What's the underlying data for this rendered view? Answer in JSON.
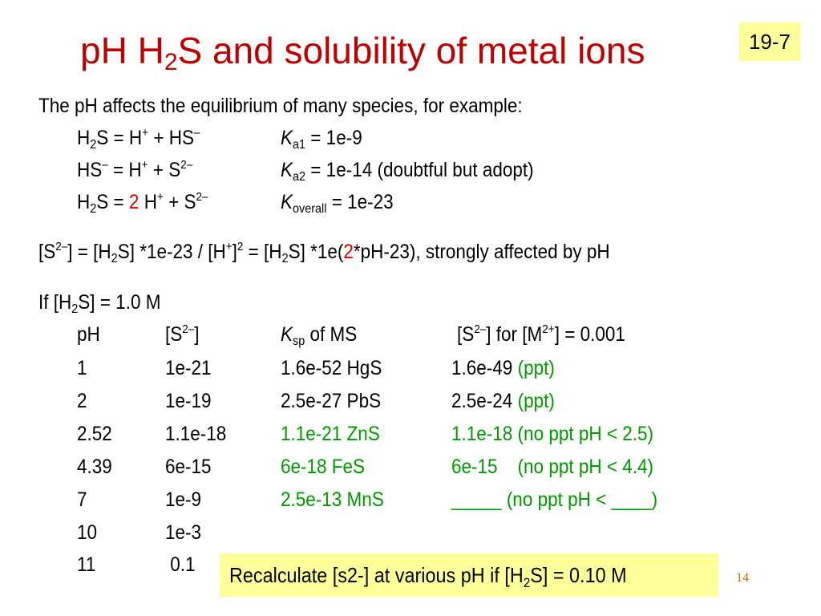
{
  "title": {
    "pre": "pH H",
    "sub": "2",
    "post": "S and solubility of metal ions"
  },
  "badge": "19-7",
  "intro": "The pH affects the equilibrium of many species, for example:",
  "eq1": {
    "a": "H",
    "b": "2",
    "c": "S = H",
    "d": "+",
    "e": " + HS",
    "f": "–",
    "k": "K",
    "ksub": "a1",
    "kval": " = 1e-9"
  },
  "eq2": {
    "a": "HS",
    "b": "–",
    "c": " = H",
    "d": "+",
    "e": " + S",
    "f": "2–",
    "k": "K",
    "ksub": "a2",
    "kval": " = 1e-14 (doubtful but adopt)"
  },
  "eq3": {
    "a": "H",
    "b": "2",
    "c": "S = ",
    "red": "2",
    "d": " H",
    "e": "+",
    "f": " + S",
    "g": "2–",
    "k": "K",
    "ksub": "overall",
    "kval": " = 1e-23"
  },
  "relation": {
    "p1": "[S",
    "p2": "2–",
    "p3": "] = [H",
    "p4": "2",
    "p5": "S] *1e-23 / [H",
    "p6": "+",
    "p7": "]",
    "p8": "2",
    "p9": " = [H",
    "p10": "2",
    "p11": "S] *1e(",
    "red": "2",
    "p12": "*pH-23), strongly affected by pH"
  },
  "condition": {
    "a": "If [H",
    "b": "2",
    "c": "S] = 1.0 M"
  },
  "table": {
    "header": {
      "ph": "pH",
      "s_a": "[S",
      "s_b": "2–",
      "s_c": "]",
      "k_a": "K",
      "k_b": "sp",
      "k_c": " of MS",
      "r_a": "[S",
      "r_b": "2–",
      "r_c": "]  for [M",
      "r_d": "2+",
      "r_e": "] = 0.001"
    },
    "rows": [
      {
        "ph": "1",
        "s": "1e-21",
        "ksp": "1.6e-52 HgS",
        "result": "1.6e-49",
        "note": "(ppt)"
      },
      {
        "ph": "2",
        "s": "1e-19",
        "ksp": "2.5e-27 PbS",
        "result": "2.5e-24",
        "note": "(ppt)"
      },
      {
        "ph": "2.52",
        "s": "1.1e-18",
        "ksp": "1.1e-21 ZnS",
        "result": "1.1e-18 (no ppt pH < 2.5)"
      },
      {
        "ph": "4.39",
        "s": "6e-15",
        "ksp": "6e-18 FeS",
        "result": "6e-15    (no ppt pH < 4.4)"
      },
      {
        "ph": "7",
        "s": "1e-9",
        "ksp": "2.5e-13 MnS",
        "result": "_____ (no ppt pH < ____)"
      },
      {
        "ph": "10",
        "s": "1e-3"
      },
      {
        "ph": "11",
        "s": " 0.1"
      }
    ]
  },
  "note": {
    "a": "Recalculate [s2-] at various pH if [H",
    "b": "2",
    "c": "S] = 0.10 M"
  },
  "page_number": "14",
  "colors": {
    "title": "#c00000",
    "highlight": "#ffff99",
    "green": "#009900",
    "red": "#e00000"
  }
}
